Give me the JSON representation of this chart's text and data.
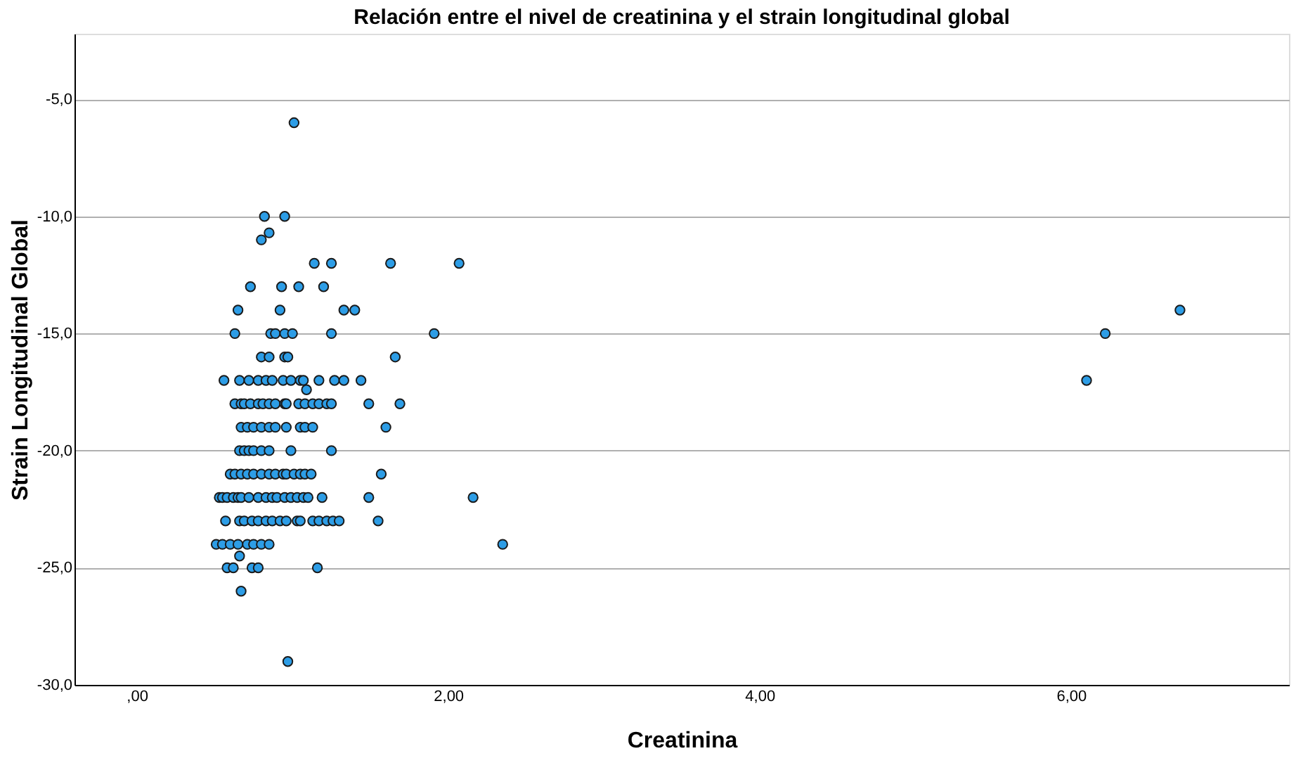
{
  "chart_data": {
    "type": "scatter",
    "title": "Relación entre el nivel de creatinina y el strain longitudinal global",
    "xlabel": "Creatinina",
    "ylabel": "Strain Longitudinal Global",
    "xlim": [
      -0.4,
      7.4
    ],
    "xticks": [
      {
        "value": 0,
        "label": ",00"
      },
      {
        "value": 2,
        "label": "2,00"
      },
      {
        "value": 4,
        "label": "4,00"
      },
      {
        "value": 6,
        "label": "6,00"
      }
    ],
    "ylim": [
      -30,
      -2.2
    ],
    "yticks": [
      {
        "value": -30,
        "label": "-30,0"
      },
      {
        "value": -25,
        "label": "-25,0"
      },
      {
        "value": -20,
        "label": "-20,0"
      },
      {
        "value": -15,
        "label": "-15,0"
      },
      {
        "value": -10,
        "label": "-10,0"
      },
      {
        "value": -5,
        "label": "-5,0"
      }
    ],
    "grid": "y",
    "marker": "circle",
    "series": [
      {
        "color": "#2d9de6",
        "x": [
          1.01,
          0.82,
          0.95,
          0.85,
          0.8,
          1.14,
          1.25,
          1.63,
          2.07,
          0.73,
          0.93,
          1.04,
          1.2,
          0.65,
          0.92,
          1.33,
          1.4,
          0.63,
          0.86,
          0.89,
          0.95,
          1.0,
          1.25,
          1.91,
          0.8,
          0.85,
          0.95,
          0.97,
          1.66,
          0.56,
          0.66,
          0.72,
          0.78,
          0.83,
          0.87,
          0.94,
          0.99,
          1.05,
          1.07,
          1.17,
          1.27,
          1.33,
          1.44,
          1.09,
          6.1,
          6.22,
          6.7,
          0.63,
          0.67,
          0.69,
          0.73,
          0.78,
          0.81,
          0.85,
          0.89,
          0.95,
          0.96,
          1.04,
          1.08,
          1.13,
          1.17,
          1.22,
          1.25,
          1.49,
          1.69,
          0.67,
          0.71,
          0.75,
          0.8,
          0.85,
          0.89,
          0.96,
          1.05,
          1.08,
          1.13,
          1.6,
          0.66,
          0.69,
          0.72,
          0.75,
          0.8,
          0.85,
          0.99,
          1.25,
          0.6,
          0.63,
          0.67,
          0.71,
          0.75,
          0.8,
          0.85,
          0.89,
          0.94,
          0.96,
          1.01,
          1.05,
          1.08,
          1.12,
          1.57,
          0.53,
          0.55,
          0.58,
          0.62,
          0.65,
          0.67,
          0.72,
          0.78,
          0.83,
          0.87,
          0.9,
          0.95,
          0.99,
          1.03,
          1.07,
          1.1,
          1.19,
          1.49,
          2.16,
          0.57,
          0.66,
          0.69,
          0.74,
          0.78,
          0.83,
          0.87,
          0.92,
          0.96,
          1.03,
          1.05,
          1.13,
          1.17,
          1.22,
          1.26,
          1.3,
          1.55,
          0.51,
          0.55,
          0.6,
          0.65,
          0.71,
          0.75,
          0.8,
          0.85,
          2.35,
          0.66,
          0.58,
          0.62,
          0.74,
          0.78,
          1.16,
          0.67,
          0.97
        ],
        "values": [
          -6,
          -10,
          -10,
          -10.7,
          -11,
          -12,
          -12,
          -12,
          -12,
          -13,
          -13,
          -13,
          -13,
          -14,
          -14,
          -14,
          -14,
          -15,
          -15,
          -15,
          -15,
          -15,
          -15,
          -15,
          -16,
          -16,
          -16,
          -16,
          -16,
          -17,
          -17,
          -17,
          -17,
          -17,
          -17,
          -17,
          -17,
          -17,
          -17,
          -17,
          -17,
          -17,
          -17,
          -17.4,
          -17,
          -15,
          -14,
          -18,
          -18,
          -18,
          -18,
          -18,
          -18,
          -18,
          -18,
          -18,
          -18,
          -18,
          -18,
          -18,
          -18,
          -18,
          -18,
          -18,
          -18,
          -19,
          -19,
          -19,
          -19,
          -19,
          -19,
          -19,
          -19,
          -19,
          -19,
          -19,
          -20,
          -20,
          -20,
          -20,
          -20,
          -20,
          -20,
          -20,
          -21,
          -21,
          -21,
          -21,
          -21,
          -21,
          -21,
          -21,
          -21,
          -21,
          -21,
          -21,
          -21,
          -21,
          -21,
          -22,
          -22,
          -22,
          -22,
          -22,
          -22,
          -22,
          -22,
          -22,
          -22,
          -22,
          -22,
          -22,
          -22,
          -22,
          -22,
          -22,
          -22,
          -22,
          -23,
          -23,
          -23,
          -23,
          -23,
          -23,
          -23,
          -23,
          -23,
          -23,
          -23,
          -23,
          -23,
          -23,
          -23,
          -23,
          -23,
          -24,
          -24,
          -24,
          -24,
          -24,
          -24,
          -24,
          -24,
          -24,
          -24.5,
          -25,
          -25,
          -25,
          -25,
          -25,
          -26,
          -29
        ]
      }
    ]
  }
}
